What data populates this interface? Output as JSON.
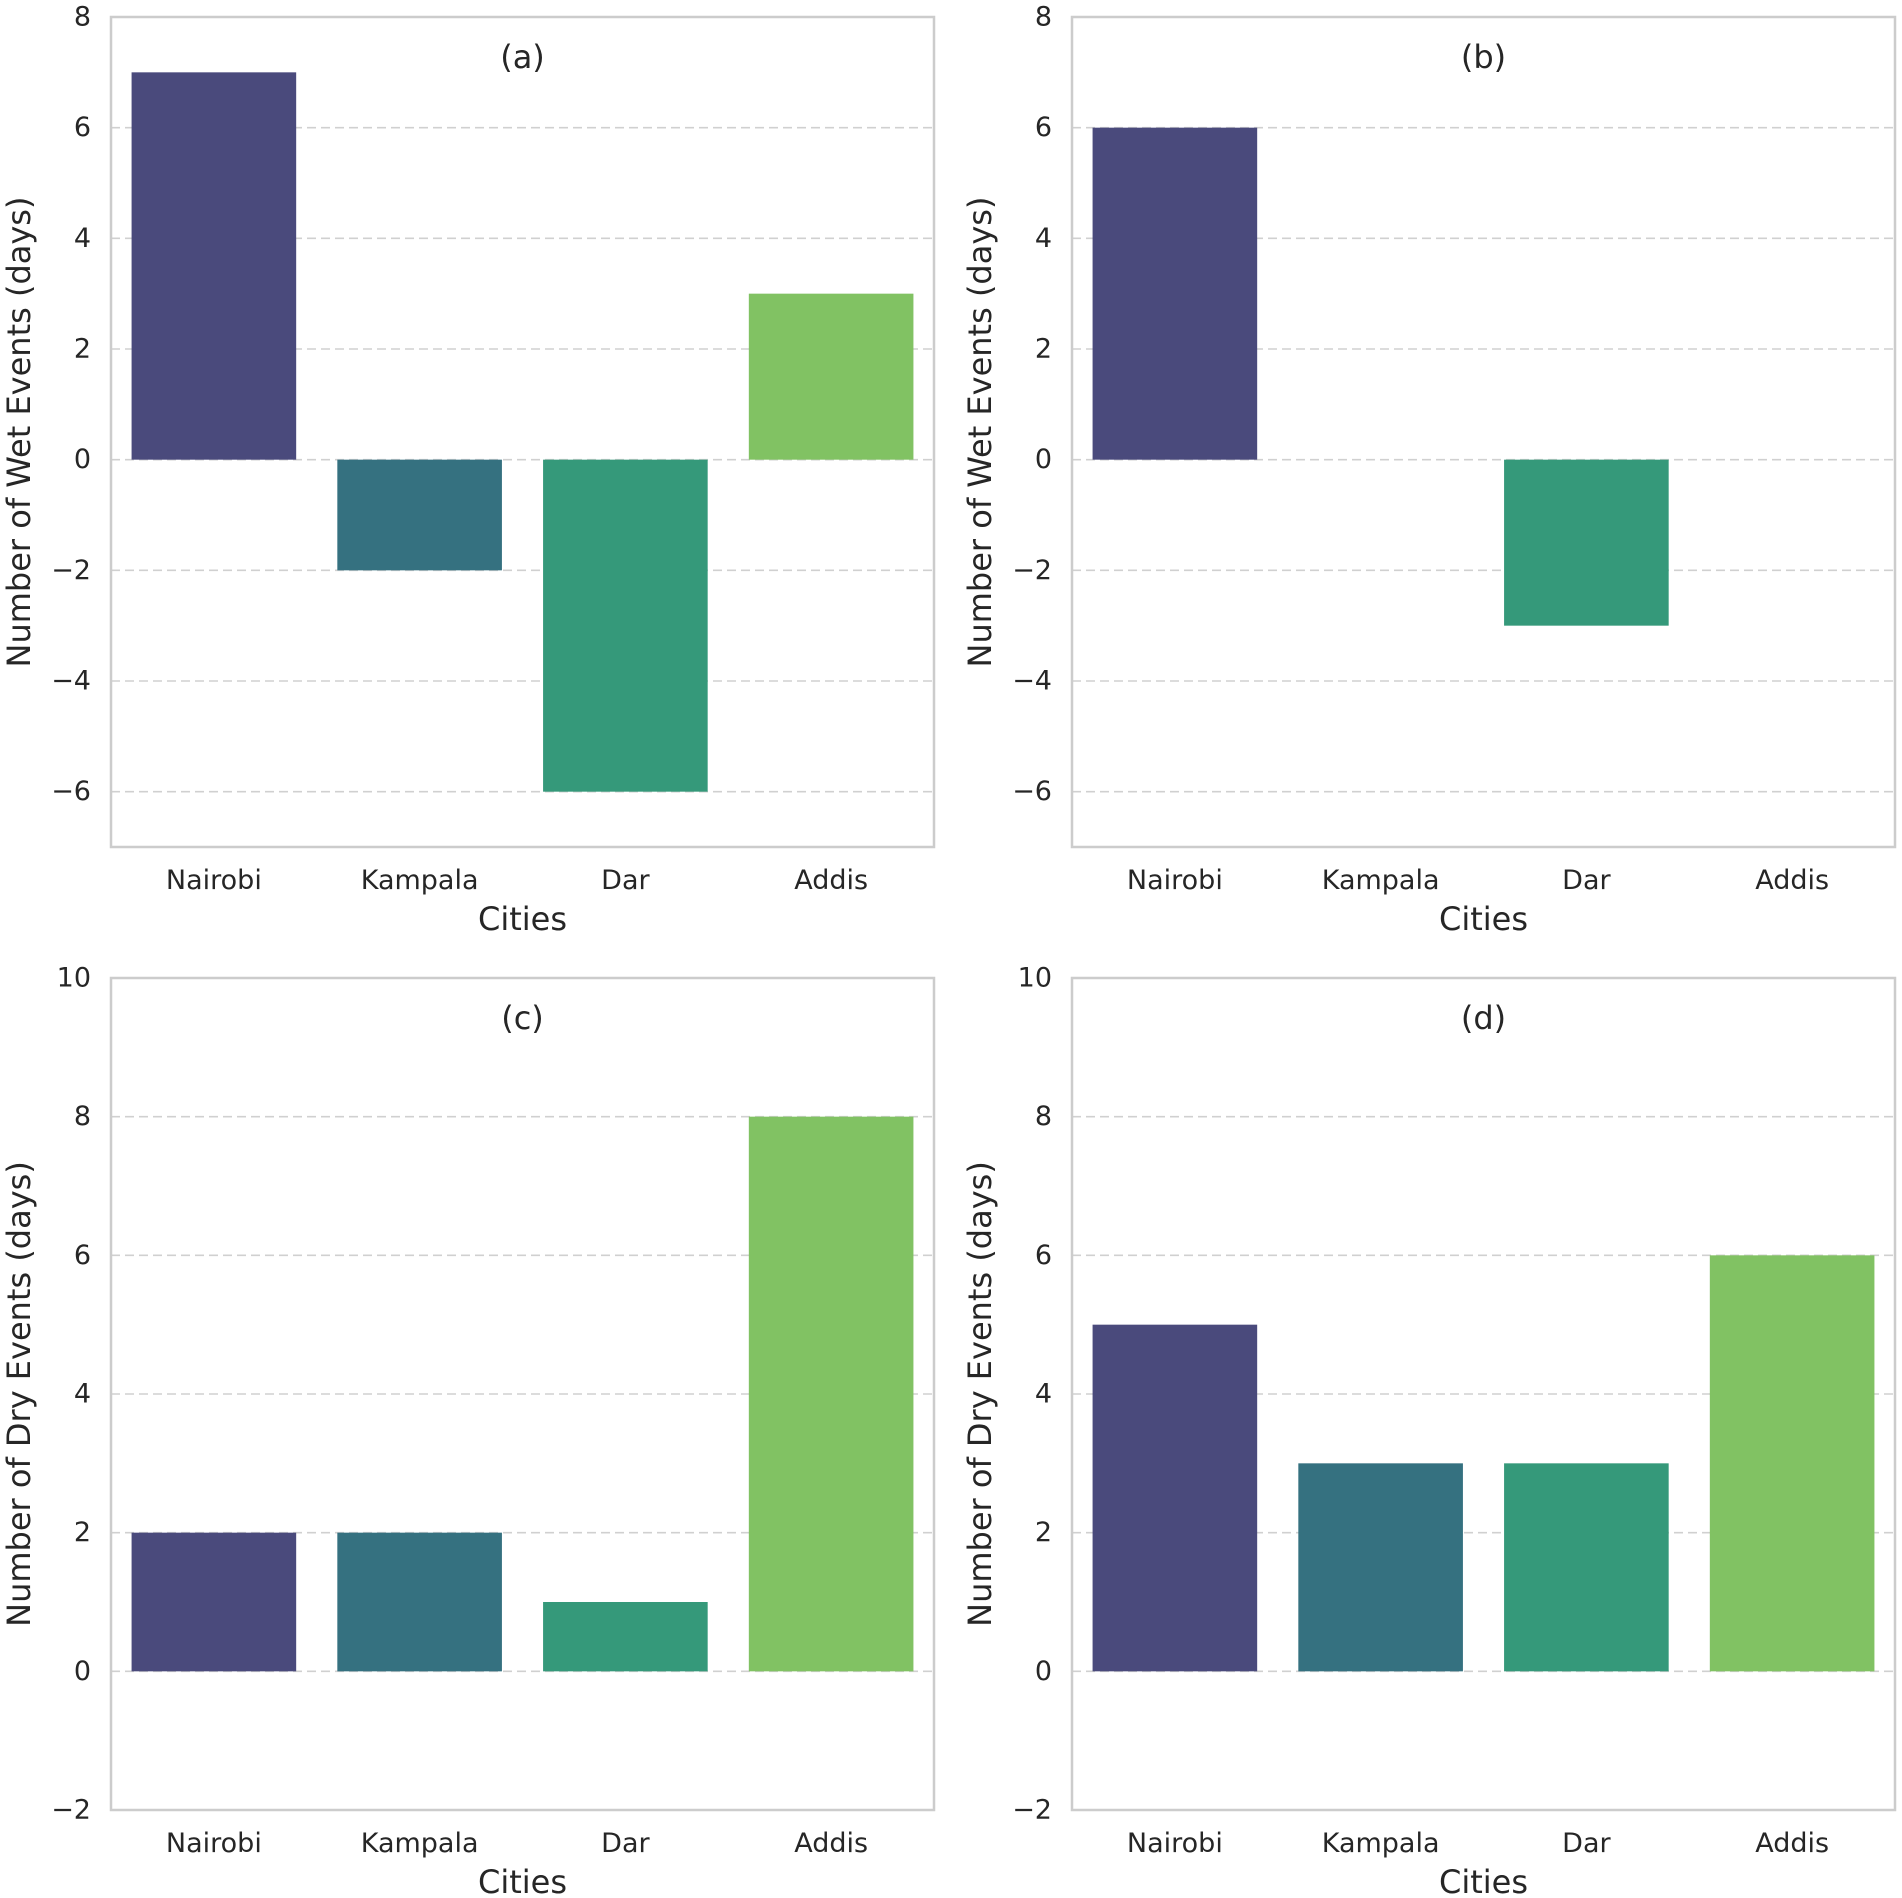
{
  "chart_data": [
    {
      "type": "bar",
      "title": "(a)",
      "xlabel": "Cities",
      "ylabel": "Number of Wet Events (days)",
      "categories": [
        "Nairobi",
        "Kampala",
        "Dar",
        "Addis"
      ],
      "values": [
        7,
        -2,
        -6,
        3
      ],
      "ylim": [
        -7,
        8
      ],
      "yticks": [
        -6,
        -4,
        -2,
        0,
        2,
        4,
        6,
        8
      ],
      "ytick_labels": [
        "−6",
        "−4",
        "−2",
        "0",
        "2",
        "4",
        "6",
        "8"
      ],
      "grid": "y-dashed"
    },
    {
      "type": "bar",
      "title": "(b)",
      "xlabel": "Cities",
      "ylabel": "Number of Wet Events (days)",
      "categories": [
        "Nairobi",
        "Kampala",
        "Dar",
        "Addis"
      ],
      "values": [
        6,
        0,
        -3,
        0
      ],
      "ylim": [
        -7,
        8
      ],
      "yticks": [
        -6,
        -4,
        -2,
        0,
        2,
        4,
        6,
        8
      ],
      "ytick_labels": [
        "−6",
        "−4",
        "−2",
        "0",
        "2",
        "4",
        "6",
        "8"
      ],
      "grid": "y-dashed"
    },
    {
      "type": "bar",
      "title": "(c)",
      "xlabel": "Cities",
      "ylabel": "Number of Dry Events (days)",
      "categories": [
        "Nairobi",
        "Kampala",
        "Dar",
        "Addis"
      ],
      "values": [
        2,
        2,
        1,
        8
      ],
      "ylim": [
        -2,
        10
      ],
      "yticks": [
        -2,
        0,
        2,
        4,
        6,
        8,
        10
      ],
      "ytick_labels": [
        "−2",
        "0",
        "2",
        "4",
        "6",
        "8",
        "10"
      ],
      "grid": "y-dashed"
    },
    {
      "type": "bar",
      "title": "(d)",
      "xlabel": "Cities",
      "ylabel": "Number of Dry Events (days)",
      "categories": [
        "Nairobi",
        "Kampala",
        "Dar",
        "Addis"
      ],
      "values": [
        5,
        3,
        3,
        6
      ],
      "ylim": [
        -2,
        10
      ],
      "yticks": [
        -2,
        0,
        2,
        4,
        6,
        8,
        10
      ],
      "ytick_labels": [
        "−2",
        "0",
        "2",
        "4",
        "6",
        "8",
        "10"
      ],
      "grid": "y-dashed"
    }
  ],
  "colors": {
    "Nairobi": "#4a4a7c",
    "Kampala": "#357180",
    "Dar": "#35997a",
    "Addis": "#81c263"
  }
}
